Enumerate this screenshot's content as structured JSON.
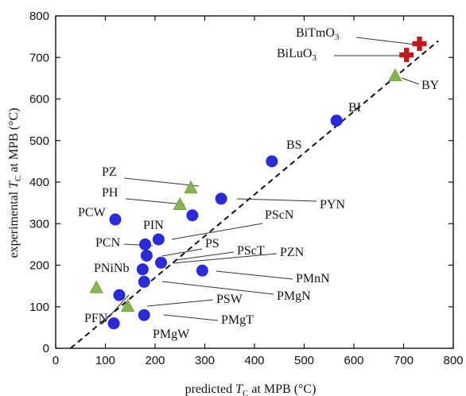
{
  "chart_data": {
    "type": "scatter",
    "xlabel_parts": [
      "predicted ",
      "T",
      "C",
      " at MPB (°C)"
    ],
    "ylabel_parts": [
      "experimental ",
      "T",
      "C",
      " at MPB (°C)"
    ],
    "xlim": [
      0,
      800
    ],
    "ylim": [
      0,
      800
    ],
    "xticks": [
      "0",
      "100",
      "200",
      "300",
      "400",
      "500",
      "600",
      "700",
      "800"
    ],
    "yticks": [
      "0",
      "100",
      "200",
      "300",
      "400",
      "500",
      "600",
      "700",
      "800"
    ],
    "reference_line": "y = x (dashed)",
    "series": [
      {
        "marker": "circle",
        "color": "#2a2ad6",
        "points": [
          {
            "label": "BI",
            "x": 565,
            "y": 548
          },
          {
            "label": "BS",
            "x": 435,
            "y": 450
          },
          {
            "label": "PYN",
            "x": 333,
            "y": 360
          },
          {
            "label": "PCW",
            "x": 120,
            "y": 310
          },
          {
            "label": "PIN",
            "x": 275,
            "y": 320
          },
          {
            "label": "PScN",
            "x": 207,
            "y": 262
          },
          {
            "label": "PCN",
            "x": 180,
            "y": 250
          },
          {
            "label": "PS",
            "x": 183,
            "y": 223
          },
          {
            "label": "PScT",
            "x": 212,
            "y": 206
          },
          {
            "label": "PZN",
            "x": 175,
            "y": 190
          },
          {
            "label": "PMnN",
            "x": 295,
            "y": 187
          },
          {
            "label": "PNiNb",
            "x": 178,
            "y": 160
          },
          {
            "label": "PMgN",
            "x": 128,
            "y": 128
          },
          {
            "label": "PMgT",
            "x": 178,
            "y": 80
          },
          {
            "label": "PMgW",
            "x": 117,
            "y": 60
          }
        ]
      },
      {
        "marker": "triangle",
        "color": "#86b550",
        "points": [
          {
            "label": "BY",
            "x": 683,
            "y": 655
          },
          {
            "label": "PZ",
            "x": 272,
            "y": 385
          },
          {
            "label": "PH",
            "x": 250,
            "y": 345
          },
          {
            "label": "PFN",
            "x": 82,
            "y": 145
          },
          {
            "label": "PSW",
            "x": 145,
            "y": 100
          }
        ]
      },
      {
        "marker": "cross",
        "color": "#c0191d",
        "points": [
          {
            "label": "BiTmO3",
            "x": 732,
            "y": 733
          },
          {
            "label": "BiLuO3",
            "x": 706,
            "y": 706
          }
        ]
      }
    ],
    "point_labels": {
      "BI": [
        "BI"
      ],
      "BS": [
        "BS"
      ],
      "BY": [
        "BY"
      ],
      "BiTmO3": [
        "BiTmO",
        "3"
      ],
      "BiLuO3": [
        "BiLuO",
        "3"
      ],
      "PYN": [
        "PYN"
      ],
      "PZ": [
        "PZ"
      ],
      "PH": [
        "PH"
      ],
      "PCW": [
        "PCW"
      ],
      "PIN": [
        "PIN"
      ],
      "PScN": [
        "PScN"
      ],
      "PCN": [
        "PCN"
      ],
      "PS": [
        "PS"
      ],
      "PScT": [
        "PScT"
      ],
      "PZN": [
        "PZN"
      ],
      "PNiNb": [
        "PNiNb"
      ],
      "PMnN": [
        "PMnN"
      ],
      "PMgN": [
        "PMgN"
      ],
      "PSW": [
        "PSW"
      ],
      "PFN": [
        "PFN"
      ],
      "PMgT": [
        "PMgT"
      ],
      "PMgW": [
        "PMgW"
      ]
    }
  }
}
